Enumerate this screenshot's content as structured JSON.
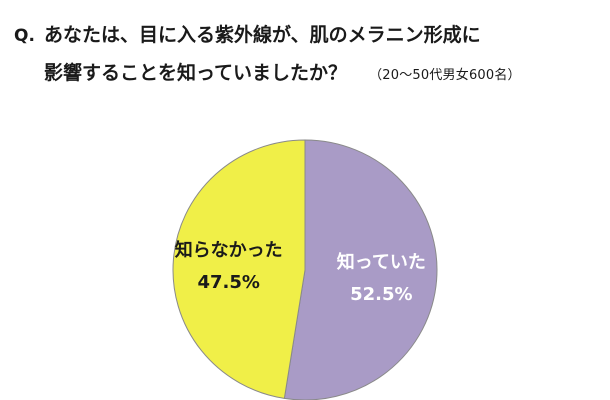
{
  "title": {
    "prefix": "Q.",
    "line1": "あなたは、目に入る紫外線が、肌のメラニン形成に",
    "line2": "影響することを知っていましたか？",
    "note": "（20～50代男女600名）"
  },
  "colors": {
    "knew": "#a99bc6",
    "did_not_know": "#f0ef48",
    "outline": "#8a8a8a",
    "label_knew": "#ffffff",
    "label_did_not_know": "#1a1a1a"
  },
  "chart_data": {
    "type": "pie",
    "title": "あなたは、目に入る紫外線が、肌のメラニン形成に影響することを知っていましたか？",
    "slices": [
      {
        "label": "知っていた",
        "value": 52.5,
        "display": "52.5%",
        "color": "#a99bc6",
        "text_color": "#ffffff"
      },
      {
        "label": "知らなかった",
        "value": 47.5,
        "display": "47.5%",
        "color": "#f0ef48",
        "text_color": "#1a1a1a"
      }
    ],
    "start": "top",
    "direction": "clockwise",
    "legend": "none"
  }
}
